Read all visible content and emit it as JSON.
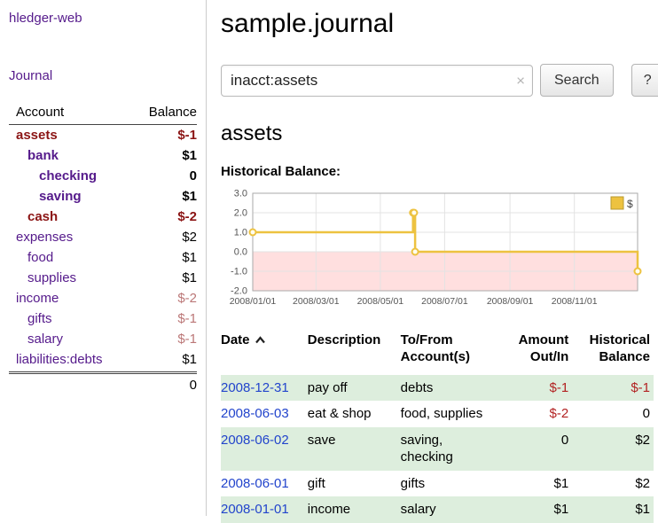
{
  "colors": {
    "purple": "#551a8b",
    "link-blue": "#2244cc",
    "black": "#000000",
    "neg-dark": "#8b1414",
    "neg-red": "#b22222",
    "neg-light": "#bb7777",
    "row-green": "#ddeedd",
    "chart-line": "#edc240",
    "chart-neg-bg": "#ffdfdf"
  },
  "sidebar": {
    "app_title": "hledger-web",
    "journal_link": "Journal",
    "header": {
      "account": "Account",
      "balance": "Balance"
    },
    "accounts": [
      {
        "name": "assets",
        "balance": "$-1",
        "indent": 0,
        "bold": true,
        "name_color": "neg-dark",
        "balance_color": "neg-dark"
      },
      {
        "name": "bank",
        "balance": "$1",
        "indent": 1,
        "bold": true,
        "name_color": "purple",
        "balance_color": "black"
      },
      {
        "name": "checking",
        "balance": "0",
        "indent": 2,
        "bold": true,
        "name_color": "purple",
        "balance_color": "black"
      },
      {
        "name": "saving",
        "balance": "$1",
        "indent": 2,
        "bold": true,
        "name_color": "purple",
        "balance_color": "black"
      },
      {
        "name": "cash",
        "balance": "$-2",
        "indent": 1,
        "bold": true,
        "name_color": "neg-dark",
        "balance_color": "neg-dark"
      },
      {
        "name": "expenses",
        "balance": "$2",
        "indent": 0,
        "bold": false,
        "name_color": "purple",
        "balance_color": "black"
      },
      {
        "name": "food",
        "balance": "$1",
        "indent": 1,
        "bold": false,
        "name_color": "purple",
        "balance_color": "black"
      },
      {
        "name": "supplies",
        "balance": "$1",
        "indent": 1,
        "bold": false,
        "name_color": "purple",
        "balance_color": "black"
      },
      {
        "name": "income",
        "balance": "$-2",
        "indent": 0,
        "bold": false,
        "name_color": "purple",
        "balance_color": "neg-light"
      },
      {
        "name": "gifts",
        "balance": "$-1",
        "indent": 1,
        "bold": false,
        "name_color": "purple",
        "balance_color": "neg-light"
      },
      {
        "name": "salary",
        "balance": "$-1",
        "indent": 1,
        "bold": false,
        "name_color": "purple",
        "balance_color": "neg-light"
      },
      {
        "name": "liabilities:debts",
        "balance": "$1",
        "indent": 0,
        "bold": false,
        "name_color": "purple",
        "balance_color": "black"
      }
    ],
    "total": "0"
  },
  "main": {
    "title": "sample.journal",
    "search": {
      "value": "inacct:assets",
      "clear": "×",
      "submit": "Search",
      "help": "?"
    },
    "heading": "assets",
    "chart_title": "Historical Balance:"
  },
  "chart_data": {
    "type": "line",
    "step": true,
    "title": "Historical Balance",
    "legend": {
      "label": "$",
      "position": "top-right"
    },
    "x": [
      "2008-01-01",
      "2008-06-01",
      "2008-06-02",
      "2008-06-03",
      "2008-12-31"
    ],
    "series": [
      {
        "name": "$",
        "values": [
          1,
          2,
          2,
          0,
          -1
        ]
      }
    ],
    "xrange": [
      "2008-01-01",
      "2008-12-31"
    ],
    "ylim": [
      -2,
      3
    ],
    "yticks": [
      {
        "value": 3,
        "label": "3.0"
      },
      {
        "value": 2,
        "label": "2.0"
      },
      {
        "value": 1,
        "label": "1.0"
      },
      {
        "value": 0,
        "label": "0.0"
      },
      {
        "value": -1,
        "label": "-1.0"
      },
      {
        "value": -2,
        "label": "-2.0"
      }
    ],
    "xticks": [
      {
        "date": "2008-01-01",
        "label": "2008/01/01"
      },
      {
        "date": "2008-03-01",
        "label": "2008/03/01"
      },
      {
        "date": "2008-05-01",
        "label": "2008/05/01"
      },
      {
        "date": "2008-07-01",
        "label": "2008/07/01"
      },
      {
        "date": "2008-09-01",
        "label": "2008/09/01"
      },
      {
        "date": "2008-11-01",
        "label": "2008/11/01"
      }
    ],
    "grid": true
  },
  "table": {
    "headers": [
      {
        "label": "Date",
        "sort": "asc",
        "align": "left"
      },
      {
        "label": "Description",
        "align": "left"
      },
      {
        "label": "To/From Account(s)",
        "align": "left"
      },
      {
        "label": "Amount Out/In",
        "align": "right"
      },
      {
        "label": "Historical Balance",
        "align": "right"
      }
    ],
    "rows": [
      {
        "date": "2008-12-31",
        "description": "pay off",
        "accounts": "debts",
        "amount": "$-1",
        "amount_neg": true,
        "balance": "$-1",
        "balance_neg": true,
        "shaded": true
      },
      {
        "date": "2008-06-03",
        "description": "eat & shop",
        "accounts": "food, supplies",
        "amount": "$-2",
        "amount_neg": true,
        "balance": "0",
        "balance_neg": false,
        "shaded": false
      },
      {
        "date": "2008-06-02",
        "description": "save",
        "accounts": "saving, checking",
        "amount": "0",
        "amount_neg": false,
        "balance": "$2",
        "balance_neg": false,
        "shaded": true
      },
      {
        "date": "2008-06-01",
        "description": "gift",
        "accounts": "gifts",
        "amount": "$1",
        "amount_neg": false,
        "balance": "$2",
        "balance_neg": false,
        "shaded": false
      },
      {
        "date": "2008-01-01",
        "description": "income",
        "accounts": "salary",
        "amount": "$1",
        "amount_neg": false,
        "balance": "$1",
        "balance_neg": false,
        "shaded": true
      }
    ]
  }
}
